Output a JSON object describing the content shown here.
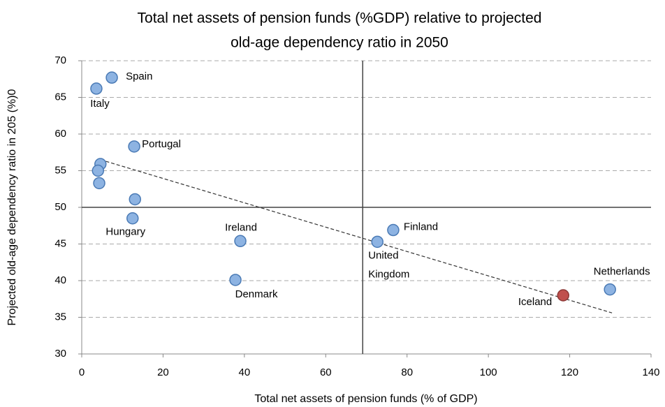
{
  "chart_data": {
    "type": "scatter",
    "title": [
      "Total net assets of pension funds (%GDP) relative to projected",
      "old-age dependency ratio in 2050"
    ],
    "x_label": "Total net assets of pension funds (% of GDP)",
    "y_label": "Projected old-age dependency ratio in 205 (%)0",
    "x": [
      7.4,
      3.6,
      12.9,
      4.6,
      4.0,
      4.3,
      13.1,
      12.5,
      39.0,
      37.8,
      76.6,
      72.7,
      118.4,
      129.9
    ],
    "y": [
      67.7,
      66.2,
      58.3,
      55.9,
      55.0,
      53.3,
      51.1,
      48.5,
      45.4,
      40.1,
      46.9,
      45.3,
      38.0,
      38.8
    ],
    "labels": [
      "Spain",
      "Italy",
      "Portugal",
      null,
      null,
      null,
      null,
      "Hungary",
      "Ireland",
      "Denmark",
      "Finland",
      [
        "United",
        "Kingdom"
      ],
      "Iceland",
      "Netherlands"
    ],
    "colors": [
      "#8db3e2",
      "#8db3e2",
      "#8db3e2",
      "#8db3e2",
      "#8db3e2",
      "#8db3e2",
      "#8db3e2",
      "#8db3e2",
      "#8db3e2",
      "#8db3e2",
      "#8db3e2",
      "#8db3e2",
      "#c0504d",
      "#8db3e2"
    ],
    "xlim": [
      0,
      140
    ],
    "ylim": [
      30,
      70
    ],
    "xticks": [
      0,
      20,
      40,
      60,
      80,
      100,
      120,
      140
    ],
    "yticks": [
      30,
      35,
      40,
      45,
      50,
      55,
      60,
      65,
      70
    ],
    "grid": true,
    "trendline": {
      "x": [
        4.6,
        130.4
      ],
      "y": [
        56.5,
        35.6
      ]
    },
    "hline": 50,
    "vline": 69.1
  }
}
